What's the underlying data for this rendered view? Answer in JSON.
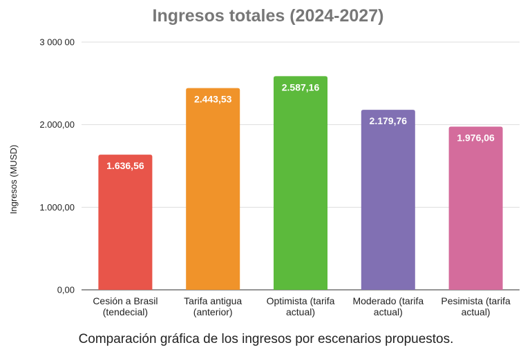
{
  "chart_data": {
    "type": "bar",
    "title": "Ingresos  totales (2024-2027)",
    "xlabel": "",
    "ylabel": "Ingresos (MUSD)",
    "ylim": [
      0,
      3000
    ],
    "grid": true,
    "yticks": [
      {
        "value": 0,
        "label": "0,00"
      },
      {
        "value": 1000,
        "label": "1.000,00"
      },
      {
        "value": 2000,
        "label": "2.000,00"
      },
      {
        "value": 3000,
        "label": "3 000 00"
      }
    ],
    "categories": [
      [
        "Cesión a Brasil",
        "(tendecial)"
      ],
      [
        "Tarifa antigua",
        "(anterior)"
      ],
      [
        "Optimista (tarifa",
        "actual)"
      ],
      [
        "Moderado (tarifa",
        "actual)"
      ],
      [
        "Pesimista (tarifa",
        "actual)"
      ]
    ],
    "values": [
      1636.56,
      2443.53,
      2587.16,
      2179.76,
      1976.06
    ],
    "data_labels": [
      "1.636,56",
      "2.443,53",
      "2.587,16",
      "2.179,76",
      "1.976,06"
    ],
    "colors": [
      "#e8554a",
      "#f0932a",
      "#5cba3c",
      "#8170b3",
      "#d46c9c"
    ],
    "gridline_color": "#dddddd",
    "axis_color": "#555555"
  },
  "caption": "Comparación gráfica de los ingresos por escenarios propuestos."
}
